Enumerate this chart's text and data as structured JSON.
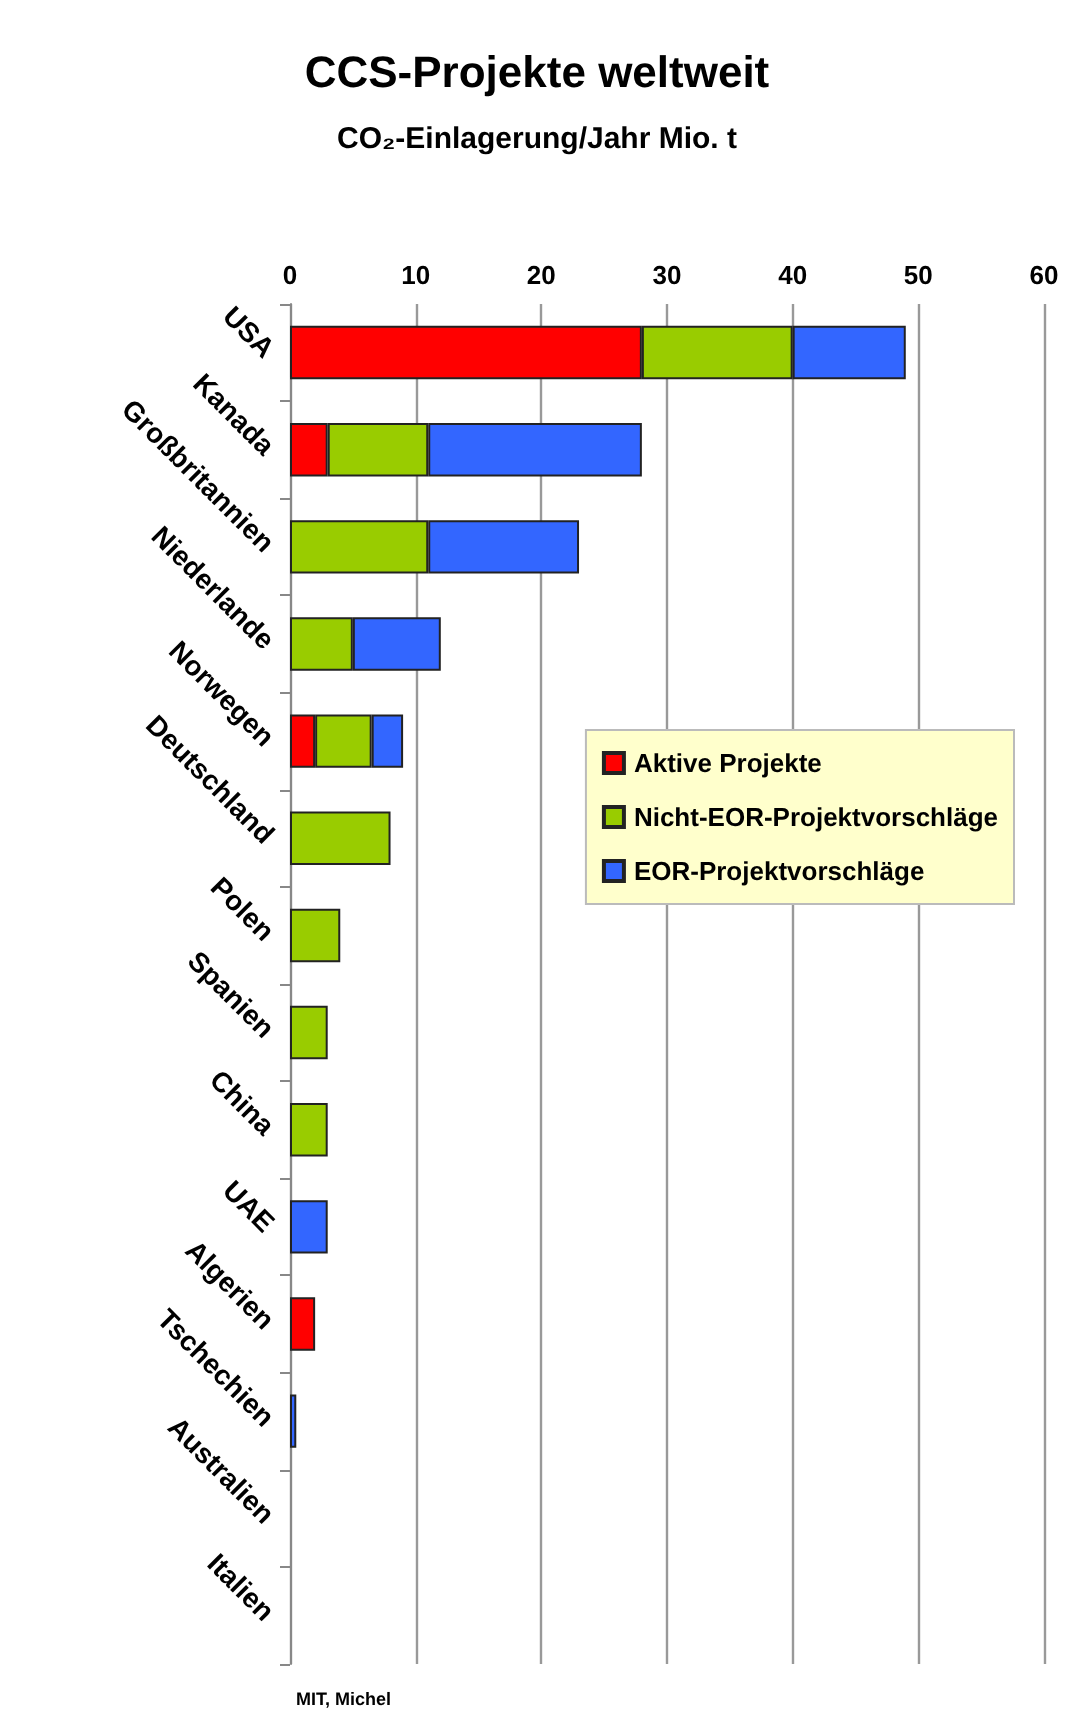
{
  "chart_data": {
    "type": "bar",
    "orientation": "horizontal",
    "stacked": true,
    "title": "CCS-Projekte weltweit",
    "subtitle": "CO₂-Einlagerung/Jahr Mio. t",
    "categories": [
      "USA",
      "Kanada",
      "Großbritannien",
      "Niederlande",
      "Norwegen",
      "Deutschland",
      "Polen",
      "Spanien",
      "China",
      "UAE",
      "Algerien",
      "Tschechien",
      "Australien",
      "Italien"
    ],
    "series": [
      {
        "name": "Aktive Projekte",
        "color": "#ff0000",
        "values": [
          28,
          3,
          null,
          null,
          2,
          null,
          null,
          null,
          null,
          null,
          2,
          null,
          null,
          null
        ]
      },
      {
        "name": "Nicht-EOR-Projektvorschläge",
        "color": "#99cc00",
        "values": [
          12,
          8,
          11,
          5,
          4.5,
          8,
          4,
          3,
          3,
          null,
          null,
          null,
          null,
          null
        ]
      },
      {
        "name": "EOR-Projektvorschläge",
        "color": "#3366ff",
        "values": [
          9,
          17,
          12,
          7,
          2.5,
          null,
          null,
          null,
          null,
          3,
          null,
          0.5,
          null,
          null
        ]
      }
    ],
    "xlim": [
      0,
      60
    ],
    "xticks": [
      0,
      10,
      20,
      30,
      40,
      50,
      60
    ],
    "grid": "x",
    "legend": "right",
    "annotations": [
      "MIT, Michel"
    ]
  }
}
